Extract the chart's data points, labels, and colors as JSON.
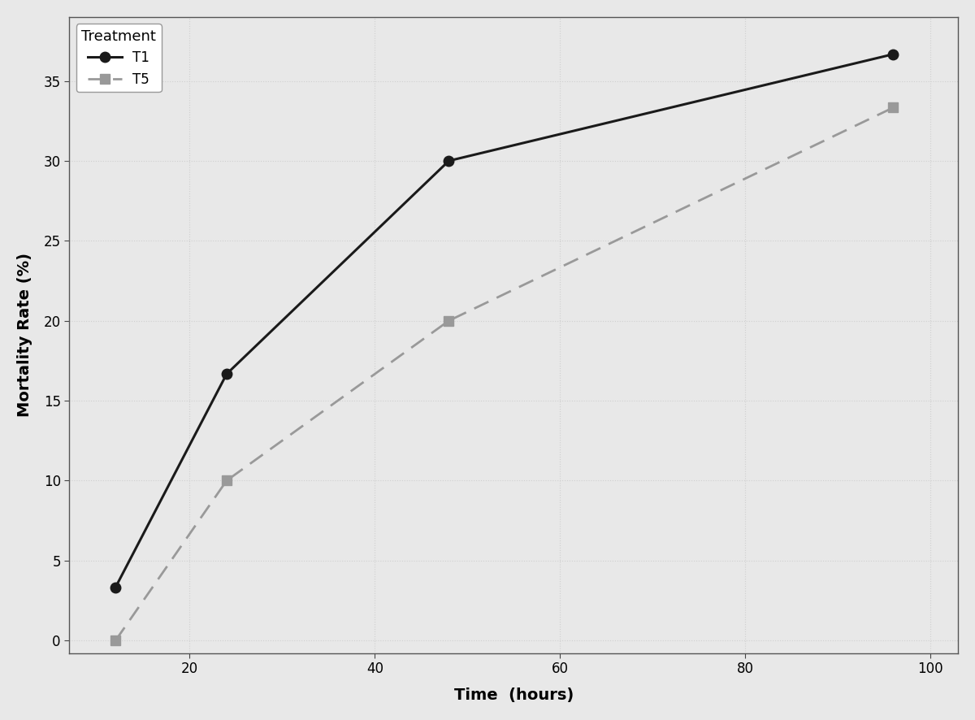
{
  "xlabel": "Time  (hours)",
  "ylabel": "Mortality Rate (%)",
  "T1": {
    "label": "T1",
    "x": [
      12,
      24,
      48,
      96
    ],
    "y": [
      3.33,
      16.67,
      30.0,
      36.67
    ],
    "color": "#1a1a1a",
    "linestyle": "solid",
    "marker": "o",
    "linewidth": 2.2
  },
  "T5": {
    "label": "T5",
    "x": [
      12,
      24,
      48,
      96
    ],
    "y": [
      0.0,
      10.0,
      20.0,
      33.33
    ],
    "color": "#999999",
    "linestyle": "dashed",
    "marker": "s",
    "linewidth": 2.0
  },
  "xlim": [
    7,
    103
  ],
  "ylim": [
    -0.8,
    39
  ],
  "xticks": [
    20,
    40,
    60,
    80,
    100
  ],
  "yticks": [
    0,
    5,
    10,
    15,
    20,
    25,
    30,
    35
  ],
  "grid_color": "#d0d0d0",
  "background_color": "#e8e8e8",
  "plot_bg_color": "#e8e8e8",
  "legend_title": "Treatment",
  "label_fontsize": 14,
  "tick_fontsize": 12,
  "legend_fontsize": 12
}
